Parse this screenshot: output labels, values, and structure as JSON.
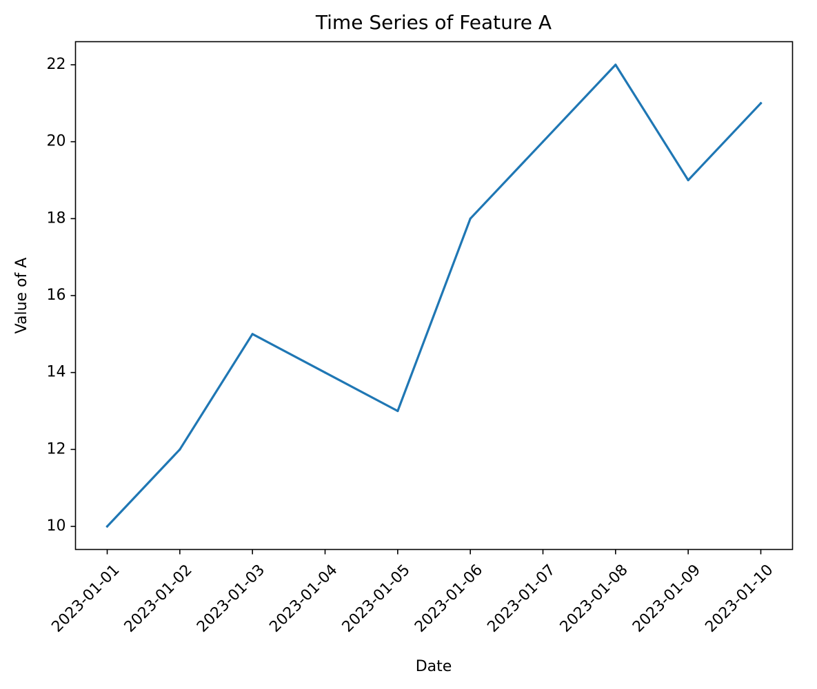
{
  "chart_data": {
    "type": "line",
    "title": "Time Series of Feature A",
    "xlabel": "Date",
    "ylabel": "Value of A",
    "x": [
      "2023-01-01",
      "2023-01-02",
      "2023-01-03",
      "2023-01-04",
      "2023-01-05",
      "2023-01-06",
      "2023-01-07",
      "2023-01-08",
      "2023-01-09",
      "2023-01-10"
    ],
    "series": [
      {
        "values": [
          10,
          12,
          15,
          14,
          13,
          18,
          20,
          22,
          19,
          21
        ],
        "color": "#1f77b4"
      }
    ],
    "yticks": [
      10,
      12,
      14,
      16,
      18,
      20,
      22
    ],
    "ylim": [
      9.4,
      22.6
    ],
    "grid": false,
    "legend": "none"
  }
}
